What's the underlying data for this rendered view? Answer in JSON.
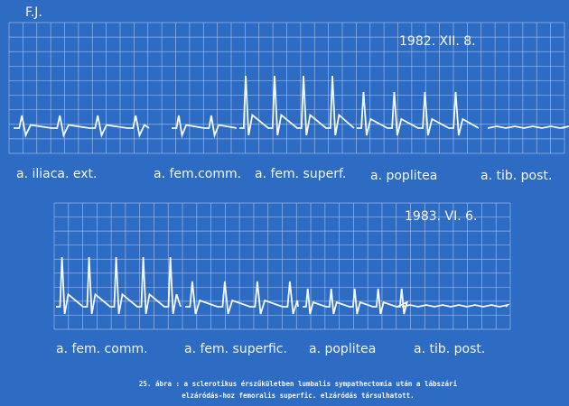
{
  "header": {
    "patient": "F.J."
  },
  "panels": [
    {
      "date": "1982. XII. 8.",
      "labels": [
        "a. iliaca. ext.",
        "a. fem.comm.",
        "a. fem. superf.",
        "a. poplitea",
        "a. tib. post."
      ]
    },
    {
      "date": "1983. VI. 6.",
      "labels": [
        "a. fem. comm.",
        "a. fem. superfic.",
        "a. poplitea",
        "a. tib. post."
      ]
    }
  ],
  "caption": {
    "lines": [
      "25. ábra : a sclerotikus érszűkületben lumbalis sympathectomia után a lábszári",
      "elzáródás-hoz femoralis superfic. elzáródás társulhatott."
    ]
  }
}
